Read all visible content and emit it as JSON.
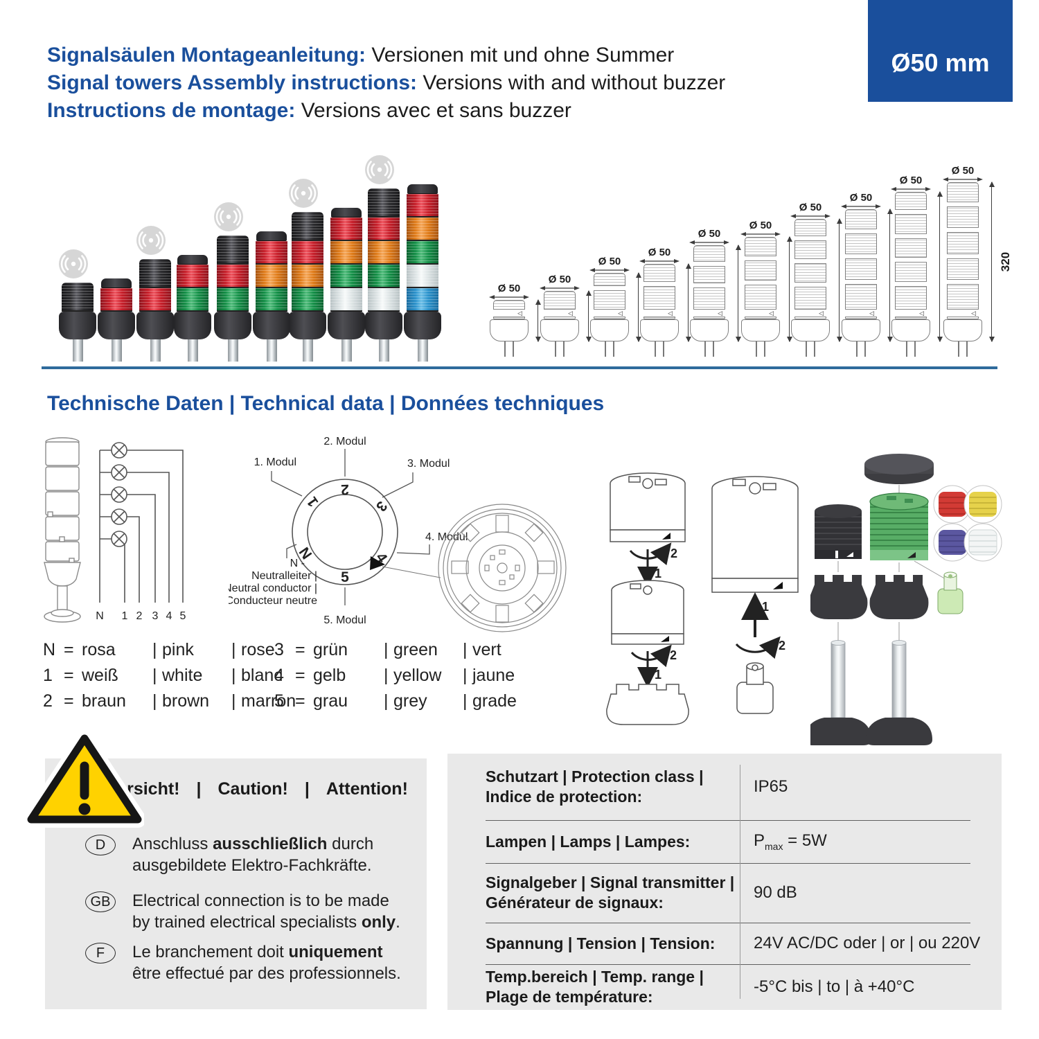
{
  "palette": {
    "brand_blue": "#1a4f9c",
    "divider_blue": "#2f6b9c",
    "box_grey": "#e9e9e9",
    "warning_yellow": "#ffd200",
    "module_red": "#c8202b",
    "module_orange": "#e07c1a",
    "module_green": "#169149",
    "module_clear": "#dde4e5",
    "module_blue": "#2c93cc",
    "housing_black": "#3a3a3e"
  },
  "header": {
    "lines": [
      {
        "label": "Signalsäulen Montageanleitung:",
        "rest": " Versionen mit und ohne Summer"
      },
      {
        "label": "Signal towers Assembly instructions:",
        "rest": " Versions with and without buzzer"
      },
      {
        "label": "Instructions de montage:",
        "rest": " Versions avec et sans buzzer"
      }
    ],
    "badge": "Ø50 mm"
  },
  "photo": {
    "towers": [
      {
        "buzzer_icon": true,
        "segments": [
          "buzzer"
        ]
      },
      {
        "buzzer_icon": false,
        "segments": [
          "cap",
          "red"
        ]
      },
      {
        "buzzer_icon": true,
        "segments": [
          "buzzer",
          "red"
        ]
      },
      {
        "buzzer_icon": false,
        "segments": [
          "cap",
          "red",
          "green"
        ]
      },
      {
        "buzzer_icon": true,
        "segments": [
          "buzzer",
          "red",
          "green"
        ]
      },
      {
        "buzzer_icon": false,
        "segments": [
          "cap",
          "red",
          "orange",
          "green"
        ]
      },
      {
        "buzzer_icon": true,
        "segments": [
          "buzzer",
          "red",
          "orange",
          "green"
        ]
      },
      {
        "buzzer_icon": false,
        "segments": [
          "cap",
          "red",
          "orange",
          "green",
          "clear"
        ]
      },
      {
        "buzzer_icon": true,
        "segments": [
          "buzzer",
          "red",
          "orange",
          "green",
          "clear"
        ]
      },
      {
        "buzzer_icon": false,
        "segments": [
          "cap",
          "red",
          "orange",
          "green",
          "clear",
          "blue"
        ]
      }
    ]
  },
  "drawings": {
    "diameter_label": "Ø 50",
    "heights_mm": [
      84,
      102,
      138,
      156,
      193,
      210,
      246,
      265,
      300,
      320
    ],
    "sections": [
      1,
      1,
      2,
      2,
      3,
      3,
      4,
      4,
      5,
      5
    ]
  },
  "section_title": "Technische Daten | Technical data | Données techniques",
  "wiring": {
    "terminals": [
      "N",
      "1",
      "2",
      "3",
      "4",
      "5"
    ]
  },
  "ring": {
    "module_labels": [
      "1. Modul",
      "2. Modul",
      "3. Modul",
      "4. Modul",
      "5. Modul"
    ],
    "digits": [
      "1",
      "2",
      "3",
      "4",
      "5",
      "N"
    ],
    "neutral": [
      "N -",
      "Neutralleiter |",
      "Neutral conductor |",
      "Conducteur neutre"
    ]
  },
  "assembly": {
    "step1": "1",
    "step2": "2"
  },
  "legend": {
    "separator": "|",
    "equals": "=",
    "columns": [
      [
        {
          "key": "N",
          "de": "rosa",
          "en": "pink",
          "fr": "rose"
        },
        {
          "key": "1",
          "de": "weiß",
          "en": "white",
          "fr": "blanc"
        },
        {
          "key": "2",
          "de": "braun",
          "en": "brown",
          "fr": "marron"
        }
      ],
      [
        {
          "key": "3",
          "de": "grün",
          "en": "green",
          "fr": "vert"
        },
        {
          "key": "4",
          "de": "gelb",
          "en": "yellow",
          "fr": "jaune"
        },
        {
          "key": "5",
          "de": "grau",
          "en": "grey",
          "fr": "grade"
        }
      ]
    ]
  },
  "warning": {
    "titles": [
      "Vorsicht!",
      "Caution!",
      "Attention!"
    ],
    "pipe": "|",
    "items": [
      {
        "lang": "D",
        "pre": "Anschluss ",
        "bold": "ausschließlich",
        "post": " durch ausgebildete Elektro-Fachkräfte."
      },
      {
        "lang": "GB",
        "pre": "Electrical connection is to be made by trained electrical specialists ",
        "bold": "only",
        "post": "."
      },
      {
        "lang": "F",
        "pre": "Le branchement doit ",
        "bold": "uniquement",
        "post": " être effectué par des professionnels."
      }
    ]
  },
  "specs": {
    "rows": [
      {
        "label_lines": [
          "Schutzart | Protection class |",
          "Indice de protection:"
        ],
        "value": "IP65"
      },
      {
        "label_lines": [
          "Lampen | Lamps | Lampes:"
        ],
        "value_parts": {
          "base": "P",
          "sub": "max",
          "rest": " = 5W"
        }
      },
      {
        "label_lines": [
          "Signalgeber | Signal transmitter |",
          "Générateur de signaux:"
        ],
        "value": "90 dB"
      },
      {
        "label_lines": [
          "Spannung | Tension | Tension:"
        ],
        "value": "24V AC/DC oder | or | ou 220V"
      },
      {
        "label_lines": [
          "Temp.bereich | Temp. range |",
          "Plage de température:"
        ],
        "value": "-5°C bis | to | à +40°C"
      }
    ]
  }
}
